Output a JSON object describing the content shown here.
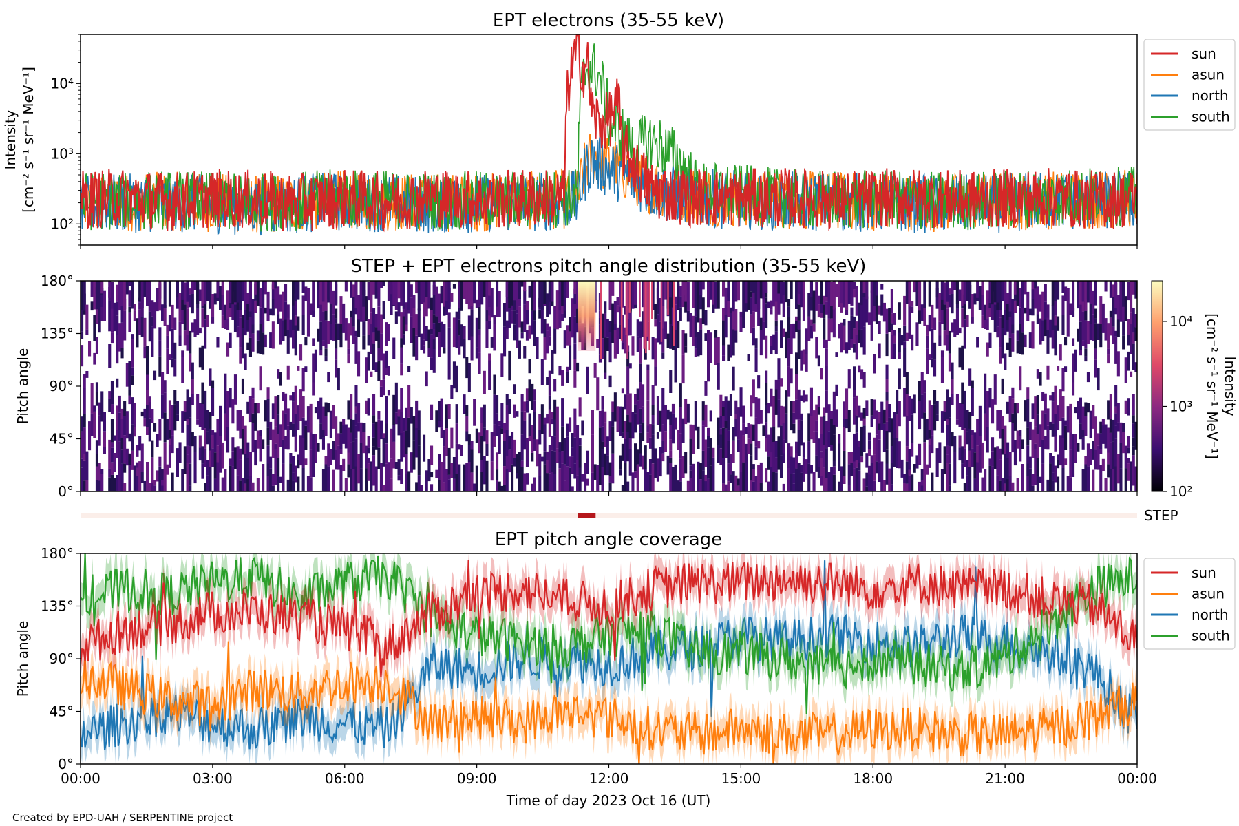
{
  "footer": {
    "credit": "Created by EPD-UAH / SERPENTINE project"
  },
  "colors": {
    "sun": "#d62728",
    "asun": "#ff7f0e",
    "north": "#1f77b4",
    "south": "#2ca02c",
    "step_bar": "#fbeee9",
    "step_mark": "#b5171b",
    "pad_base": "#3b0f70"
  },
  "chart_data": [
    {
      "type": "line",
      "title": "EPT electrons (35-55 keV)",
      "ylabel": [
        "Intensity",
        "[cm⁻² s⁻¹ sr⁻¹ MeV⁻¹]"
      ],
      "yscale": "log",
      "ylim": [
        50,
        50000
      ],
      "yticks": [
        100,
        1000,
        10000
      ],
      "yticklabels": [
        "10²",
        "10³",
        "10⁴"
      ],
      "xlim": [
        0,
        24
      ],
      "x_unit": "hours UT",
      "legend": {
        "placement": "outside-right-top",
        "entries": [
          {
            "name": "sun",
            "color_key": "sun"
          },
          {
            "name": "asun",
            "color_key": "asun"
          },
          {
            "name": "north",
            "color_key": "north"
          },
          {
            "name": "south",
            "color_key": "south"
          }
        ]
      },
      "series": [
        {
          "name": "sun",
          "x": [
            0,
            1,
            2,
            3,
            4,
            5,
            6,
            7,
            8,
            9,
            10,
            11,
            11.3,
            11.4,
            11.5,
            11.6,
            11.8,
            12,
            12.2,
            12.3,
            12.5,
            12.7,
            13,
            13.5,
            14,
            15,
            16,
            17,
            18,
            19,
            20,
            21,
            22,
            23,
            24
          ],
          "y": [
            220,
            240,
            210,
            230,
            220,
            200,
            230,
            210,
            240,
            220,
            230,
            240,
            30000,
            15000,
            20000,
            4000,
            2500,
            3000,
            5000,
            1200,
            800,
            500,
            300,
            260,
            240,
            230,
            240,
            220,
            230,
            240,
            220,
            230,
            240,
            220,
            230
          ]
        },
        {
          "name": "asun",
          "x": [
            0,
            2,
            4,
            6,
            8,
            10,
            11.3,
            11.6,
            12,
            12.5,
            13,
            14,
            16,
            18,
            20,
            22,
            24
          ],
          "y": [
            200,
            210,
            190,
            220,
            200,
            210,
            230,
            900,
            700,
            500,
            350,
            250,
            220,
            210,
            200,
            220,
            230
          ]
        },
        {
          "name": "north",
          "x": [
            0,
            2,
            4,
            6,
            8,
            10,
            11.3,
            11.6,
            12,
            12.5,
            13,
            14,
            16,
            18,
            20,
            22,
            24
          ],
          "y": [
            190,
            200,
            180,
            210,
            190,
            200,
            220,
            800,
            600,
            450,
            300,
            230,
            210,
            200,
            190,
            210,
            220
          ]
        },
        {
          "name": "south",
          "x": [
            0,
            2,
            4,
            6,
            8,
            10,
            11.3,
            11.5,
            11.7,
            12,
            12.5,
            13,
            13.5,
            14,
            16,
            18,
            20,
            22,
            24
          ],
          "y": [
            210,
            220,
            200,
            230,
            210,
            220,
            240,
            18000,
            15000,
            3000,
            1200,
            1500,
            900,
            300,
            230,
            220,
            210,
            240,
            250
          ]
        }
      ]
    },
    {
      "type": "heatmap",
      "title": "STEP + EPT electrons pitch angle distribution (35-55 keV)",
      "ylabel": "Pitch angle",
      "ylim": [
        0,
        180
      ],
      "yticks": [
        0,
        45,
        90,
        135,
        180
      ],
      "yticklabels": [
        "0°",
        "45°",
        "90°",
        "135°",
        "180°"
      ],
      "xlim": [
        0,
        24
      ],
      "colorbar": {
        "label": [
          "Intensity",
          "[cm⁻² s⁻¹ sr⁻¹ MeV⁻¹]"
        ],
        "scale": "log",
        "range": [
          100,
          30000
        ],
        "ticks": [
          100,
          1000,
          10000
        ],
        "ticklabels": [
          "10²",
          "10³",
          "10⁴"
        ],
        "colormap": "inferno"
      },
      "peak": {
        "x_start": 11.3,
        "x_end": 11.7,
        "pitch_min": 120,
        "pitch_max": 180,
        "intensity": 30000
      },
      "background_intensity": 220
    },
    {
      "type": "bar",
      "label": "STEP",
      "xlim": [
        0,
        24
      ],
      "marked_interval": [
        11.3,
        11.7
      ]
    },
    {
      "type": "line",
      "title": "EPT pitch angle coverage",
      "ylabel": "Pitch angle",
      "xlabel": "Time of day 2023 Oct 16 (UT)",
      "ylim": [
        0,
        180
      ],
      "yticks": [
        0,
        45,
        90,
        135,
        180
      ],
      "yticklabels": [
        "0°",
        "45°",
        "90°",
        "135°",
        "180°"
      ],
      "xlim": [
        0,
        24
      ],
      "xticks": [
        0,
        3,
        6,
        9,
        12,
        15,
        18,
        21,
        24
      ],
      "xticklabels": [
        "00:00",
        "03:00",
        "06:00",
        "09:00",
        "12:00",
        "15:00",
        "18:00",
        "21:00",
        "00:00"
      ],
      "legend": {
        "placement": "outside-right-top",
        "entries": [
          {
            "name": "sun",
            "color_key": "sun"
          },
          {
            "name": "asun",
            "color_key": "asun"
          },
          {
            "name": "north",
            "color_key": "north"
          },
          {
            "name": "south",
            "color_key": "south"
          }
        ]
      },
      "series": [
        {
          "name": "sun",
          "x": [
            0,
            1,
            2,
            3,
            4,
            5,
            6,
            7,
            8,
            9,
            10,
            11,
            12,
            13,
            14,
            15,
            16,
            17,
            18,
            19,
            20,
            21,
            22,
            23,
            24
          ],
          "y": [
            100,
            115,
            120,
            130,
            130,
            125,
            115,
            100,
            130,
            145,
            150,
            140,
            135,
            150,
            155,
            155,
            158,
            155,
            150,
            155,
            150,
            150,
            140,
            135,
            105
          ]
        },
        {
          "name": "asun",
          "x": [
            0,
            1,
            2,
            3,
            4,
            5,
            6,
            7,
            8,
            9,
            10,
            11,
            12,
            13,
            14,
            15,
            16,
            17,
            18,
            19,
            20,
            21,
            22,
            23,
            24
          ],
          "y": [
            75,
            65,
            55,
            50,
            65,
            60,
            70,
            70,
            35,
            40,
            35,
            45,
            40,
            30,
            25,
            30,
            25,
            25,
            30,
            30,
            25,
            25,
            30,
            40,
            55
          ]
        },
        {
          "name": "north",
          "x": [
            0,
            1,
            2,
            3,
            4,
            5,
            6,
            7,
            8,
            9,
            10,
            11,
            12,
            13,
            14,
            15,
            16,
            17,
            18,
            19,
            20,
            21,
            22,
            23,
            24
          ],
          "y": [
            25,
            35,
            45,
            35,
            30,
            40,
            35,
            30,
            85,
            80,
            90,
            90,
            85,
            95,
            100,
            110,
            105,
            110,
            105,
            100,
            110,
            105,
            95,
            80,
            35
          ]
        },
        {
          "name": "south",
          "x": [
            0,
            1,
            2,
            3,
            4,
            5,
            6,
            7,
            8,
            9,
            10,
            11,
            12,
            13,
            14,
            15,
            16,
            17,
            18,
            19,
            20,
            21,
            22,
            23,
            24
          ],
          "y": [
            140,
            150,
            145,
            155,
            160,
            140,
            155,
            160,
            125,
            110,
            105,
            100,
            110,
            115,
            95,
            95,
            90,
            80,
            90,
            85,
            80,
            90,
            120,
            150,
            160
          ]
        }
      ]
    }
  ]
}
